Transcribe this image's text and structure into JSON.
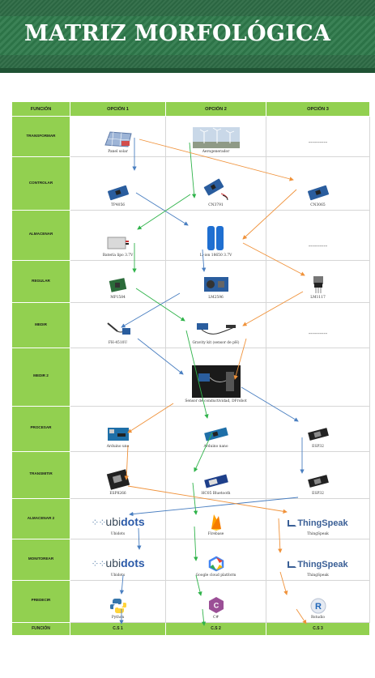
{
  "header": {
    "title": "MATRIZ MORFOLÓGICA"
  },
  "table": {
    "columns": [
      "FUNCIÓN",
      "OPCIÓN 1",
      "OPCIÓN 2",
      "OPCIÓN 3"
    ],
    "rows": [
      {
        "function": "TRANSFORMAR",
        "options": [
          "Panel solar",
          "Aerogenerador",
          "----------"
        ]
      },
      {
        "function": "CONTROLAR",
        "options": [
          "TP4056",
          "CN3791",
          "CN3065"
        ]
      },
      {
        "function": "ALMACENAR",
        "options": [
          "Batería lipo 3.7V",
          "Li-ion 18650 3.7V",
          "----------"
        ]
      },
      {
        "function": "REGULAR",
        "options": [
          "MP1584",
          "LM2596",
          "LM1117"
        ]
      },
      {
        "function": "MEDIR",
        "options": [
          "FH-4510U",
          "Gravity kit (sensor de pH)",
          "----------"
        ]
      },
      {
        "function": "MEDIR 2",
        "options": [
          "",
          "Sensor de conductividad, DFrobot",
          ""
        ]
      },
      {
        "function": "PROCESAR",
        "options": [
          "Arduino uno",
          "Arduino nano",
          "ESP32"
        ]
      },
      {
        "function": "TRANSMITIR",
        "options": [
          "ESP8266",
          "HC05 Bluetooth",
          "ESP32"
        ]
      },
      {
        "function": "ALMACENAR 2",
        "options": [
          "Ubidots",
          "Firebase",
          "ThingSpeak"
        ]
      },
      {
        "function": "MONITOREAR",
        "options": [
          "Ubidots",
          "Google cloud platform",
          "ThingSpeak"
        ]
      },
      {
        "function": "PREDECIR",
        "options": [
          "Python",
          "C#",
          "Rstudio"
        ]
      }
    ],
    "footer": {
      "label": "FUNCIÓN",
      "options": [
        "C.S 1",
        "C.S 2",
        "C.S 3"
      ]
    }
  },
  "logos": {
    "ubidots_a": "ubi",
    "ubidots_b": "dots",
    "thingspeak": "ThingSpeak"
  },
  "colors": {
    "header_green": "#2d6b45",
    "cell_green": "#92d050",
    "arrow_blue": "#4a7fc1",
    "arrow_green": "#2fb34a",
    "arrow_orange": "#f0923a"
  }
}
